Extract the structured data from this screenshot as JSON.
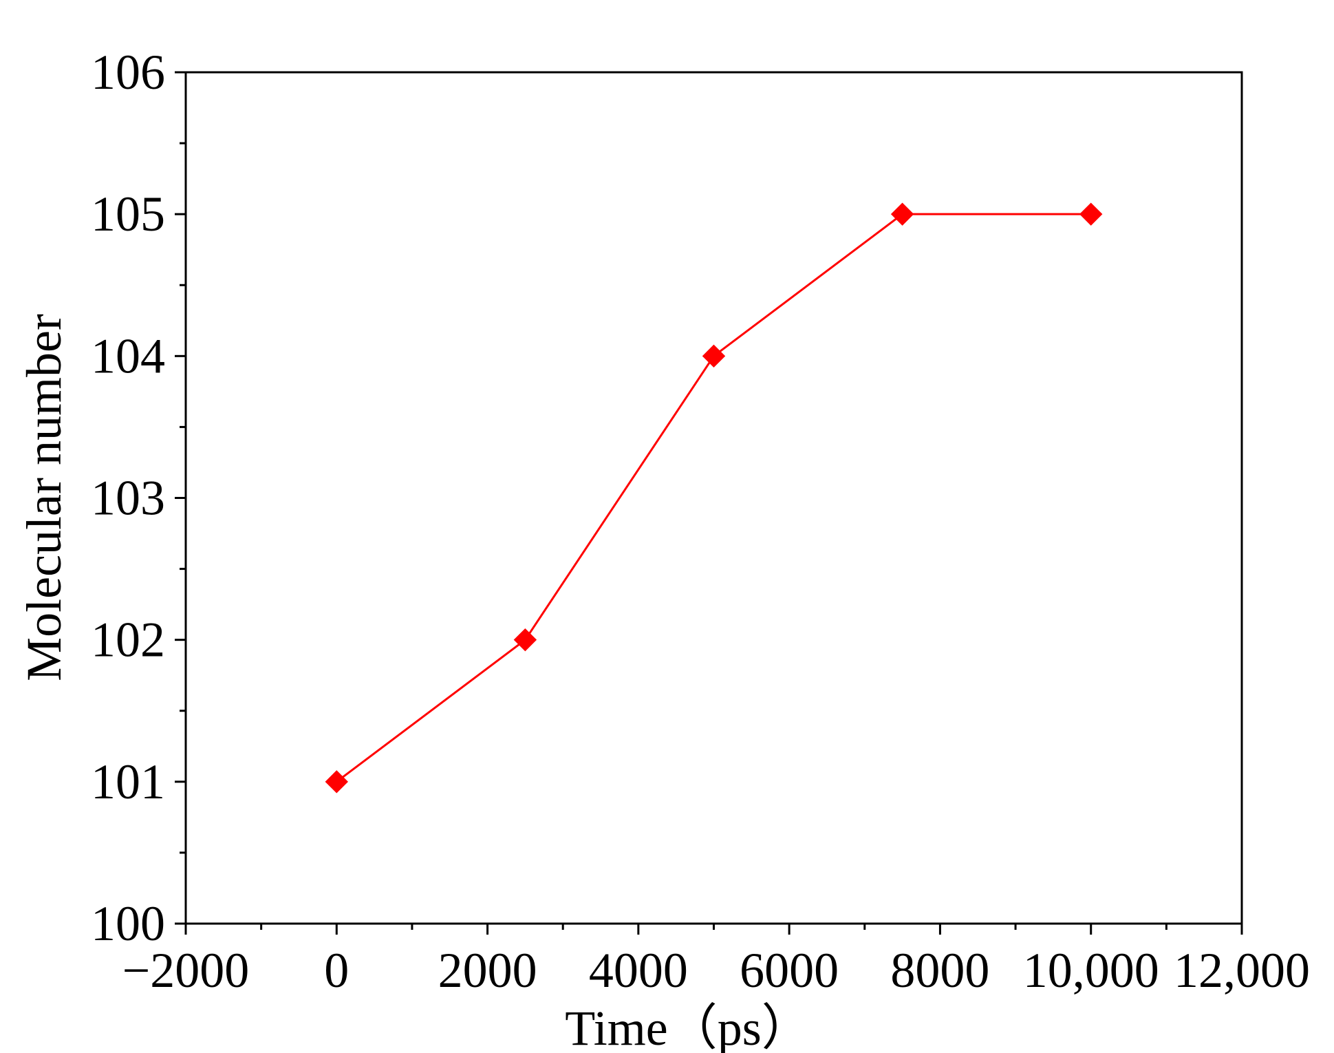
{
  "chart_data": {
    "type": "line",
    "title": "",
    "xlabel": "Time（ps）",
    "ylabel": "Molecular number",
    "xlim": [
      -2000,
      12000
    ],
    "ylim": [
      100,
      106
    ],
    "x_major_ticks": [
      -2000,
      0,
      2000,
      4000,
      6000,
      8000,
      10000,
      12000
    ],
    "x_tick_labels": [
      "−2000",
      "0",
      "2000",
      "4000",
      "6000",
      "8000",
      "10,000",
      "12,000"
    ],
    "y_major_ticks": [
      100,
      101,
      102,
      103,
      104,
      105,
      106
    ],
    "y_tick_labels": [
      "100",
      "101",
      "102",
      "103",
      "104",
      "105",
      "106"
    ],
    "grid": false,
    "legend": "none",
    "series": [
      {
        "color": "#ff0000",
        "marker": "diamond",
        "x": [
          0,
          2500,
          5000,
          7500,
          10000
        ],
        "y": [
          101,
          102,
          104,
          105,
          105
        ]
      }
    ]
  }
}
